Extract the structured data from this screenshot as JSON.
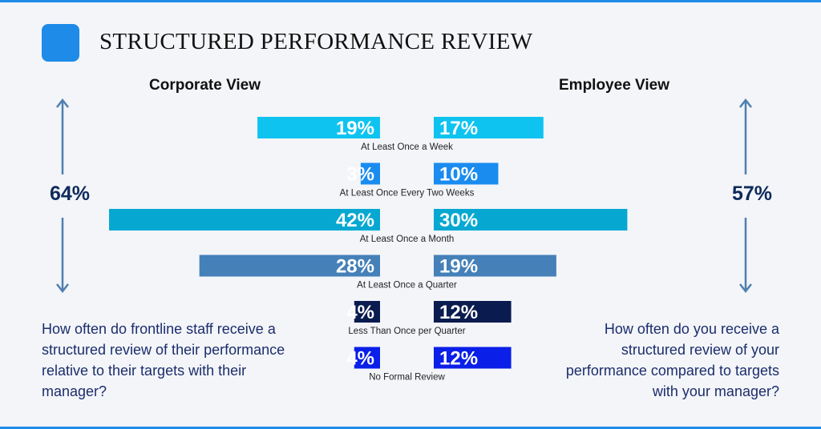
{
  "title": "STRUCTURED PERFORMANCE REVIEW",
  "colors": {
    "accent": "#1e8be8",
    "text_dark": "#0f2a5c",
    "question": "#1c2d6b",
    "arrow": "#4f7fb0"
  },
  "left_panel": {
    "label": "Corporate View",
    "total": "64%",
    "question": "How often do frontline staff receive a structured review of their performance relative to their targets with their manager?"
  },
  "right_panel": {
    "label": "Employee View",
    "total": "57%",
    "question": "How often do you receive a structured review of your performance compared to targets with your manager?"
  },
  "chart_data": {
    "type": "bar",
    "orientation": "horizontal-butterfly",
    "categories": [
      "At Least Once a Week",
      "At Least Once Every Two Weeks",
      "At Least Once a Month",
      "At Least Once a Quarter",
      "Less Than Once per Quarter",
      "No Formal Review"
    ],
    "series": [
      {
        "name": "Corporate View",
        "values": [
          19,
          3,
          42,
          28,
          4,
          4
        ]
      },
      {
        "name": "Employee View",
        "values": [
          17,
          10,
          30,
          19,
          12,
          12
        ]
      }
    ],
    "value_labels": {
      "Corporate View": [
        "19%",
        "3%",
        "42%",
        "28%",
        "4%",
        "4%"
      ],
      "Employee View": [
        "17%",
        "10%",
        "30%",
        "19%",
        "12%",
        "12%"
      ]
    },
    "bar_colors": [
      "#0fc3f0",
      "#1a8cf0",
      "#06a8d2",
      "#4580b8",
      "#0a1b4f",
      "#0a1fe8"
    ],
    "xlim": [
      0,
      42
    ],
    "unit": "%"
  }
}
